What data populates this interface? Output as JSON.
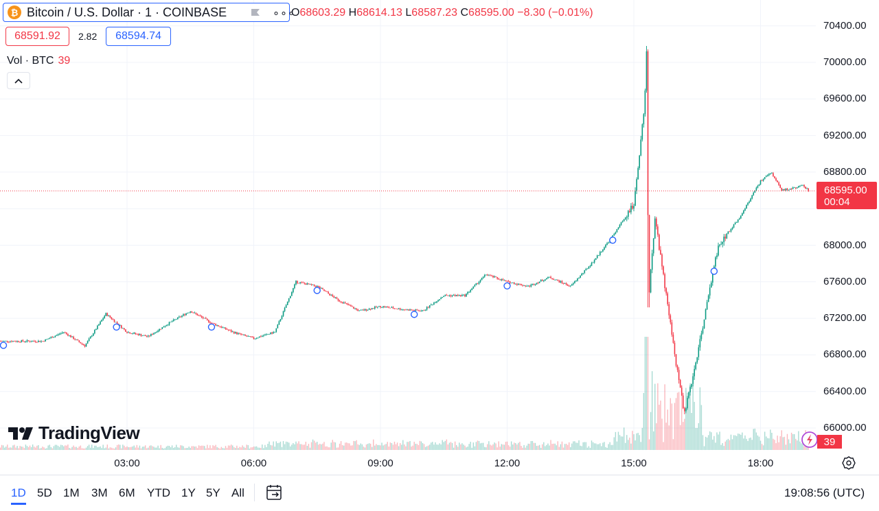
{
  "symbol": {
    "icon": "bitcoin-icon",
    "title": "Bitcoin / U.S. Dollar · 1 · COINBASE",
    "ohlc": {
      "o_label": "O",
      "o": "68603.29",
      "h_label": "H",
      "h": "68614.13",
      "l_label": "L",
      "l": "68587.23",
      "c_label": "C",
      "c": "68595.00",
      "change": "−8.30 (−0.01%)"
    }
  },
  "quote": {
    "bid": "68591.92",
    "spread": "2.82",
    "ask": "68594.74"
  },
  "volume": {
    "label": "Vol · BTC",
    "value": "39"
  },
  "price_axis": {
    "ticks": [
      "70400.00",
      "70000.00",
      "69600.00",
      "69200.00",
      "68800.00",
      "68000.00",
      "67600.00",
      "67200.00",
      "66800.00",
      "66400.00",
      "66000.00"
    ],
    "current_price": "68595.00",
    "countdown": "00:04",
    "volume_tag": "39"
  },
  "time_axis": {
    "ticks": [
      "03:00",
      "06:00",
      "09:00",
      "12:00",
      "15:00",
      "18:00"
    ]
  },
  "branding": {
    "name": "TradingView"
  },
  "ranges": [
    "1D",
    "5D",
    "1M",
    "3M",
    "6M",
    "YTD",
    "1Y",
    "5Y",
    "All"
  ],
  "active_range": "1D",
  "clock": "19:08:56 (UTC)",
  "colors": {
    "up": "#089981",
    "down": "#f23645",
    "accent": "#2962ff"
  },
  "chart_data": {
    "type": "candlestick",
    "x_ticks": [
      "03:00",
      "06:00",
      "09:00",
      "12:00",
      "15:00",
      "18:00"
    ],
    "ylim": [
      65950,
      70500
    ],
    "y_ticks": [
      66000,
      66400,
      66800,
      67200,
      67600,
      68000,
      68400,
      68800,
      69200,
      69600,
      70000,
      70400
    ],
    "last_price": 68595.0,
    "close_path": [
      [
        1.0,
        66950
      ],
      [
        1.5,
        67050
      ],
      [
        2.0,
        66900
      ],
      [
        2.5,
        67250
      ],
      [
        3.0,
        67050
      ],
      [
        3.5,
        67000
      ],
      [
        4.0,
        67150
      ],
      [
        4.5,
        67280
      ],
      [
        5.0,
        67150
      ],
      [
        5.5,
        67050
      ],
      [
        6.0,
        66980
      ],
      [
        6.5,
        67050
      ],
      [
        7.0,
        67600
      ],
      [
        7.5,
        67550
      ],
      [
        8.0,
        67400
      ],
      [
        8.5,
        67280
      ],
      [
        9.0,
        67330
      ],
      [
        9.5,
        67300
      ],
      [
        10.0,
        67280
      ],
      [
        10.5,
        67450
      ],
      [
        11.0,
        67450
      ],
      [
        11.5,
        67680
      ],
      [
        12.0,
        67600
      ],
      [
        12.5,
        67550
      ],
      [
        13.0,
        67650
      ],
      [
        13.5,
        67550
      ],
      [
        14.0,
        67800
      ],
      [
        14.5,
        68100
      ],
      [
        15.0,
        68450
      ],
      [
        15.25,
        69500
      ],
      [
        15.3,
        70100
      ],
      [
        15.35,
        67400
      ],
      [
        15.5,
        68300
      ],
      [
        16.0,
        66700
      ],
      [
        16.2,
        66150
      ],
      [
        16.5,
        66800
      ],
      [
        17.0,
        68000
      ],
      [
        17.5,
        68300
      ],
      [
        18.0,
        68700
      ],
      [
        18.25,
        68800
      ],
      [
        18.5,
        68600
      ],
      [
        19.0,
        68650
      ],
      [
        19.14,
        68595
      ]
    ],
    "markers_at": [
      0.0,
      2.75,
      5.0,
      7.5,
      9.8,
      12.0,
      14.5,
      16.9
    ]
  }
}
